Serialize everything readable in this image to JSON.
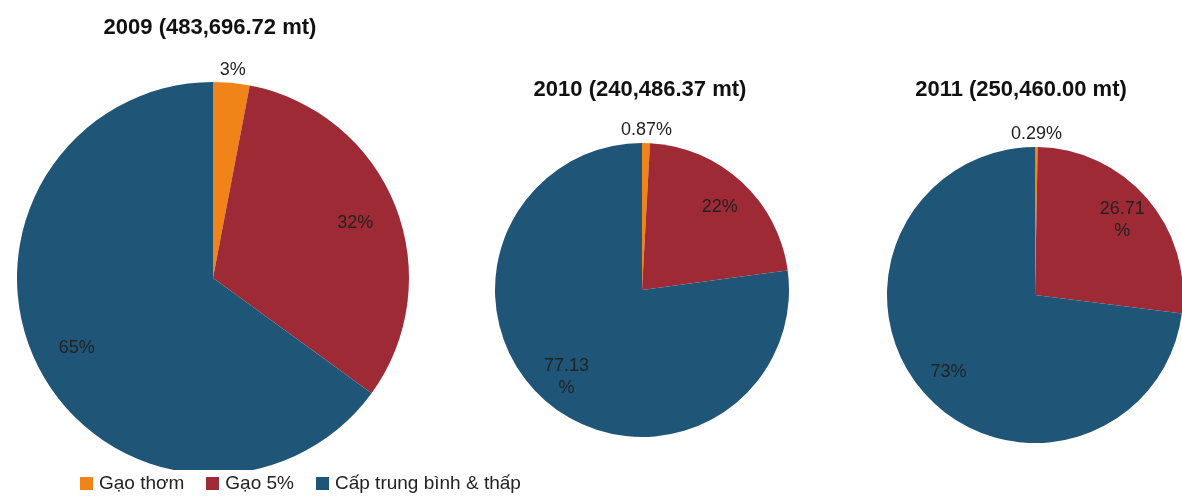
{
  "chart_data": [
    {
      "type": "pie",
      "title": "2009 (483,696.72 mt)",
      "categories": [
        "Gạo thơm",
        "Gạo 5%",
        "Cấp trung bình & thấp"
      ],
      "values": [
        3,
        32,
        65
      ],
      "colors": [
        "#f08418",
        "#9e2a36",
        "#1f5678"
      ],
      "value_labels": [
        "3%",
        "32%",
        "65%"
      ],
      "legend": "bottom"
    },
    {
      "type": "pie",
      "title": "2010 (240,486.37 mt)",
      "categories": [
        null,
        null,
        null
      ],
      "values": [
        0.87,
        22,
        77.13
      ],
      "colors": [
        "#f08418",
        "#9e2a36",
        "#1f5678"
      ],
      "value_labels": [
        "0.87%",
        "22%",
        "77.13 %"
      ]
    },
    {
      "type": "pie",
      "title": "2011 (250,460.00 mt)",
      "categories": [
        null,
        null,
        null
      ],
      "values": [
        0.29,
        26.71,
        73
      ],
      "colors": [
        "#f08418",
        "#9e2a36",
        "#1f5678"
      ],
      "value_labels": [
        "0.29%",
        "26.71 %",
        "73%"
      ]
    }
  ]
}
